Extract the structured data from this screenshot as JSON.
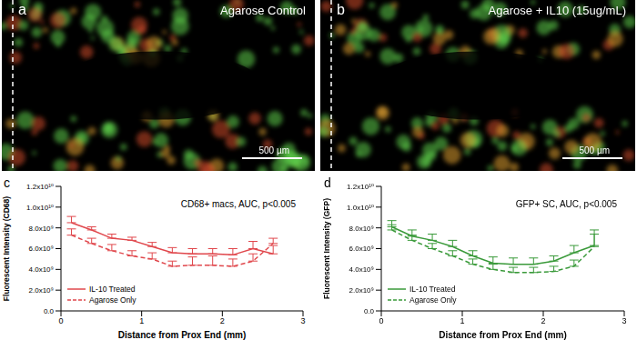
{
  "images": [
    {
      "panel": "a",
      "label": "Agarose Control",
      "scale_bar": "500 µm"
    },
    {
      "panel": "b",
      "label": "Agarose + IL10 (15ug/mL)",
      "scale_bar": "500 µm"
    }
  ],
  "chart_data": [
    {
      "panel": "c",
      "type": "line",
      "title": "CD68+ macs, AUC, p<0.005",
      "x_label": "Distance from Prox End (mm)",
      "y_label": "Fluorescent Intensity (CD68)",
      "x": [
        0.13,
        0.38,
        0.63,
        0.88,
        1.13,
        1.38,
        1.63,
        1.88,
        2.13,
        2.38,
        2.63
      ],
      "series": [
        {
          "name": "IL-10 Treated",
          "color": "#e0474c",
          "line_style": "solid",
          "marker": "none",
          "values": [
            8500000000,
            7800000000,
            7000000000,
            6800000000,
            6200000000,
            5600000000,
            5500000000,
            5500000000,
            5400000000,
            6000000000,
            5500000000
          ],
          "errors": [
            600000000,
            300000000,
            400000000,
            300000000,
            400000000,
            500000000,
            500000000,
            500000000,
            600000000,
            700000000,
            800000000
          ]
        },
        {
          "name": "Agarose Only",
          "color": "#e0474c",
          "line_style": "dashed",
          "marker": "none",
          "values": [
            7300000000,
            6500000000,
            5800000000,
            5300000000,
            5000000000,
            4300000000,
            4400000000,
            4400000000,
            4300000000,
            4800000000,
            6500000000
          ],
          "errors": [
            600000000,
            500000000,
            600000000,
            500000000,
            600000000,
            500000000,
            800000000,
            900000000,
            700000000,
            700000000,
            500000000
          ]
        }
      ],
      "xlim": [
        0,
        3
      ],
      "xticks": [
        0,
        1,
        2,
        3
      ],
      "ylim": [
        0,
        12000000000
      ],
      "yticks": [
        {
          "value": 0,
          "label": "0.0"
        },
        {
          "value": 2000000000,
          "label": "2.0x10⁹"
        },
        {
          "value": 4000000000,
          "label": "4.0x10⁹"
        },
        {
          "value": 6000000000,
          "label": "6.0x10⁹"
        },
        {
          "value": 8000000000,
          "label": "8.0x10⁹"
        },
        {
          "value": 10000000000,
          "label": "1.0x10¹⁰"
        },
        {
          "value": 12000000000,
          "label": "1.2x10¹⁰"
        }
      ],
      "legend": "lower left",
      "grid": false
    },
    {
      "panel": "d",
      "type": "line",
      "title": "GFP+ SC, AUC, p<0.005",
      "x_label": "Distance from Prox End (mm)",
      "y_label": "Fluorescent Intensity (GFP)",
      "x": [
        0.13,
        0.38,
        0.63,
        0.88,
        1.13,
        1.38,
        1.63,
        1.88,
        2.13,
        2.38,
        2.63
      ],
      "series": [
        {
          "name": "IL-10 Treated",
          "color": "#3a9a3a",
          "line_style": "solid",
          "marker": "none",
          "values": [
            8100000000,
            7200000000,
            6800000000,
            6200000000,
            5300000000,
            4600000000,
            4500000000,
            4500000000,
            4800000000,
            5600000000,
            6300000000
          ],
          "errors": [
            600000000,
            600000000,
            600000000,
            600000000,
            500000000,
            600000000,
            600000000,
            600000000,
            500000000,
            700000000,
            1500000000
          ]
        },
        {
          "name": "Agarose Only",
          "color": "#3a9a3a",
          "line_style": "dashed",
          "marker": "none",
          "values": [
            7800000000,
            6800000000,
            6000000000,
            5300000000,
            4500000000,
            4000000000,
            3700000000,
            3700000000,
            3800000000,
            4300000000,
            6200000000
          ],
          "errors": [
            500000000,
            500000000,
            500000000,
            500000000,
            500000000,
            500000000,
            500000000,
            500000000,
            500000000,
            600000000,
            1200000000
          ]
        }
      ],
      "xlim": [
        0,
        3
      ],
      "xticks": [
        0,
        1,
        2,
        3
      ],
      "ylim": [
        0,
        12000000000
      ],
      "yticks": [
        {
          "value": 0,
          "label": "0.0"
        },
        {
          "value": 2000000000,
          "label": "2.0x10⁹"
        },
        {
          "value": 4000000000,
          "label": "4.0x10⁹"
        },
        {
          "value": 6000000000,
          "label": "6.0x10⁹"
        },
        {
          "value": 8000000000,
          "label": "8.0x10⁹"
        },
        {
          "value": 10000000000,
          "label": "1.0x10¹⁰"
        },
        {
          "value": 12000000000,
          "label": "1.2x10¹⁰"
        }
      ],
      "legend": "lower left",
      "grid": false
    }
  ]
}
